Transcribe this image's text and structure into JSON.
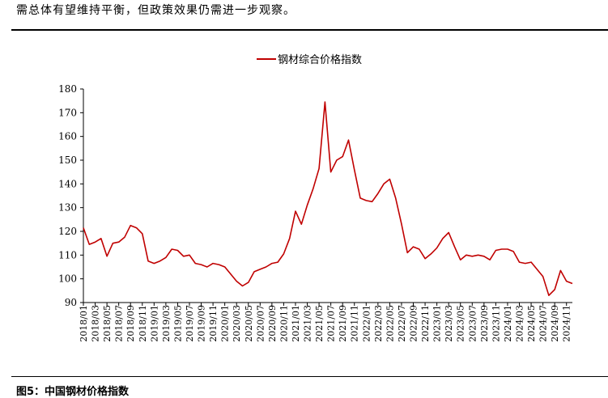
{
  "intro_text": "需总体有望维持平衡，但政策效果仍需进一步观察。",
  "caption": "图5：中国钢材价格指数",
  "colors": {
    "series": "#c00000",
    "axis": "#000000"
  },
  "chart_data": {
    "type": "line",
    "title": "",
    "xlabel": "",
    "ylabel": "",
    "ylim": [
      90,
      180
    ],
    "yticks": [
      90,
      100,
      110,
      120,
      130,
      140,
      150,
      160,
      170,
      180
    ],
    "xlim": [
      "2018/01",
      "2024/12"
    ],
    "xticks": [
      "2018/01",
      "2018/03",
      "2018/05",
      "2018/07",
      "2018/09",
      "2018/11",
      "2019/01",
      "2019/03",
      "2019/05",
      "2019/07",
      "2019/09",
      "2019/11",
      "2020/01",
      "2020/03",
      "2020/05",
      "2020/07",
      "2020/09",
      "2020/11",
      "2021/01",
      "2021/03",
      "2021/05",
      "2021/07",
      "2021/09",
      "2021/11",
      "2022/01",
      "2022/03",
      "2022/05",
      "2022/07",
      "2022/09",
      "2022/11",
      "2023/01",
      "2023/03",
      "2023/05",
      "2023/07",
      "2023/09",
      "2023/11",
      "2024/01",
      "2024/03",
      "2024/05",
      "2024/07",
      "2024/09",
      "2024/11"
    ],
    "legend": {
      "position": "top-center"
    },
    "grid": false,
    "series": [
      {
        "name": "钢材综合价格指数",
        "points": [
          [
            "2018/01",
            121.5
          ],
          [
            "2018/02",
            114.5
          ],
          [
            "2018/03",
            115.5
          ],
          [
            "2018/04",
            117
          ],
          [
            "2018/05",
            109.5
          ],
          [
            "2018/06",
            115
          ],
          [
            "2018/07",
            115.5
          ],
          [
            "2018/08",
            117.5
          ],
          [
            "2018/09",
            122.5
          ],
          [
            "2018/10",
            121.5
          ],
          [
            "2018/11",
            119
          ],
          [
            "2018/12",
            107.5
          ],
          [
            "2019/01",
            106.5
          ],
          [
            "2019/02",
            107.5
          ],
          [
            "2019/03",
            109
          ],
          [
            "2019/04",
            112.5
          ],
          [
            "2019/05",
            112
          ],
          [
            "2019/06",
            109.5
          ],
          [
            "2019/07",
            110
          ],
          [
            "2019/08",
            106.5
          ],
          [
            "2019/09",
            106
          ],
          [
            "2019/10",
            105
          ],
          [
            "2019/11",
            106.5
          ],
          [
            "2019/12",
            106
          ],
          [
            "2020/01",
            105
          ],
          [
            "2020/02",
            102
          ],
          [
            "2020/03",
            99
          ],
          [
            "2020/04",
            97
          ],
          [
            "2020/05",
            98.5
          ],
          [
            "2020/06",
            103
          ],
          [
            "2020/07",
            104
          ],
          [
            "2020/08",
            105
          ],
          [
            "2020/09",
            106.5
          ],
          [
            "2020/10",
            107
          ],
          [
            "2020/11",
            110.5
          ],
          [
            "2020/12",
            117
          ],
          [
            "2021/01",
            128.5
          ],
          [
            "2021/02",
            123
          ],
          [
            "2021/03",
            131
          ],
          [
            "2021/04",
            138
          ],
          [
            "2021/05",
            146.5
          ],
          [
            "2021/06",
            174.5
          ],
          [
            "2021/07",
            145
          ],
          [
            "2021/08",
            150
          ],
          [
            "2021/09",
            151.5
          ],
          [
            "2021/10",
            158.5
          ],
          [
            "2021/11",
            146
          ],
          [
            "2021/12",
            134
          ],
          [
            "2022/01",
            133
          ],
          [
            "2022/02",
            132.5
          ],
          [
            "2022/03",
            136
          ],
          [
            "2022/04",
            140
          ],
          [
            "2022/05",
            142
          ],
          [
            "2022/06",
            134
          ],
          [
            "2022/07",
            123
          ],
          [
            "2022/08",
            111
          ],
          [
            "2022/09",
            113.5
          ],
          [
            "2022/10",
            112.5
          ],
          [
            "2022/11",
            108.5
          ],
          [
            "2022/12",
            110.5
          ],
          [
            "2023/01",
            113
          ],
          [
            "2023/02",
            117
          ],
          [
            "2023/03",
            119.5
          ],
          [
            "2023/04",
            113.5
          ],
          [
            "2023/05",
            108
          ],
          [
            "2023/06",
            110
          ],
          [
            "2023/07",
            109.5
          ],
          [
            "2023/08",
            110
          ],
          [
            "2023/09",
            109.5
          ],
          [
            "2023/10",
            108
          ],
          [
            "2023/11",
            112
          ],
          [
            "2023/12",
            112.5
          ],
          [
            "2024/01",
            112.5
          ],
          [
            "2024/02",
            111.5
          ],
          [
            "2024/03",
            107
          ],
          [
            "2024/04",
            106.5
          ],
          [
            "2024/05",
            107
          ],
          [
            "2024/06",
            104
          ],
          [
            "2024/07",
            101
          ],
          [
            "2024/08",
            93
          ],
          [
            "2024/09",
            95.5
          ],
          [
            "2024/10",
            103.5
          ],
          [
            "2024/11",
            99
          ],
          [
            "2024/12",
            98
          ]
        ]
      }
    ]
  }
}
